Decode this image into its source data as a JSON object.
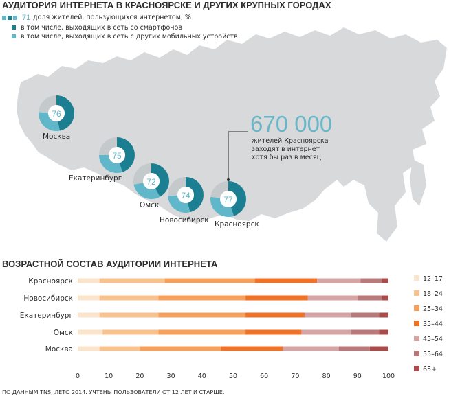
{
  "title": "АУДИТОРИЯ ИНТЕРНЕТА В КРАСНОЯРСКЕ И ДРУГИХ КРУПНЫХ ГОРОДАХ",
  "legend_top": {
    "value": "71",
    "items": [
      "доля жителей, пользующихся интернетом, %",
      "в том числе, выходящих в сеть со смартфонов",
      "в том числе, выходящих в сеть с других мобильных устройств"
    ]
  },
  "colors": {
    "smartphone": "#1c7f91",
    "mobile": "#5fb7c9",
    "nonuser": "#c4c9cc",
    "map": "#d7d9db",
    "headline_number": "#6ab6c9"
  },
  "headline": {
    "number": "670 000",
    "lines": [
      "жителей Красноярска",
      "заходят в интернет",
      "хотя бы раз в месяц"
    ]
  },
  "cities_map": [
    {
      "name": "Москва",
      "value": 76,
      "smartphone_share": 0.47,
      "mobile_share": 0.29
    },
    {
      "name": "Екатеринбург",
      "value": 75,
      "smartphone_share": 0.45,
      "mobile_share": 0.3
    },
    {
      "name": "Омск",
      "value": 72,
      "smartphone_share": 0.42,
      "mobile_share": 0.3
    },
    {
      "name": "Новосибирск",
      "value": 74,
      "smartphone_share": 0.46,
      "mobile_share": 0.28
    },
    {
      "name": "Красноярск",
      "value": 77,
      "smartphone_share": 0.45,
      "mobile_share": 0.32
    }
  ],
  "bar_section_title": "ВОЗРАСТНОЙ СОСТАВ АУДИТОРИИ ИНТЕРНЕТА",
  "chart_data": {
    "type": "bar",
    "orientation": "horizontal",
    "stacked": true,
    "categories": [
      "Красноярск",
      "Новосибирск",
      "Екатеринбург",
      "Омск",
      "Москва"
    ],
    "xlim": [
      0,
      100
    ],
    "xticks": [
      0,
      10,
      20,
      30,
      40,
      50,
      60,
      70,
      80,
      90,
      100
    ],
    "legend_position": "right",
    "series": [
      {
        "name": "12–17",
        "color": "#fbe4cc",
        "values": [
          7,
          7,
          7,
          8,
          7
        ]
      },
      {
        "name": "18–24",
        "color": "#f8c28f",
        "values": [
          21,
          19,
          19,
          18,
          13
        ]
      },
      {
        "name": "25–34",
        "color": "#f5a05c",
        "values": [
          29,
          28,
          28,
          28,
          26
        ]
      },
      {
        "name": "35–44",
        "color": "#ee7227",
        "values": [
          20,
          20,
          19,
          18,
          20
        ]
      },
      {
        "name": "45–54",
        "color": "#d4a5a4",
        "values": [
          14,
          16,
          15,
          16,
          18
        ]
      },
      {
        "name": "55–64",
        "color": "#b8797a",
        "values": [
          7,
          8,
          9,
          9,
          10
        ]
      },
      {
        "name": "65+",
        "color": "#a84c4b",
        "values": [
          2,
          2,
          3,
          3,
          6
        ]
      }
    ]
  },
  "footer": "ПО ДАННЫМ TNS, ЛЕТО 2014. УЧТЕНЫ ПОЛЬЗОВАТЕЛИ ОТ 12 ЛЕТ И СТАРШЕ."
}
